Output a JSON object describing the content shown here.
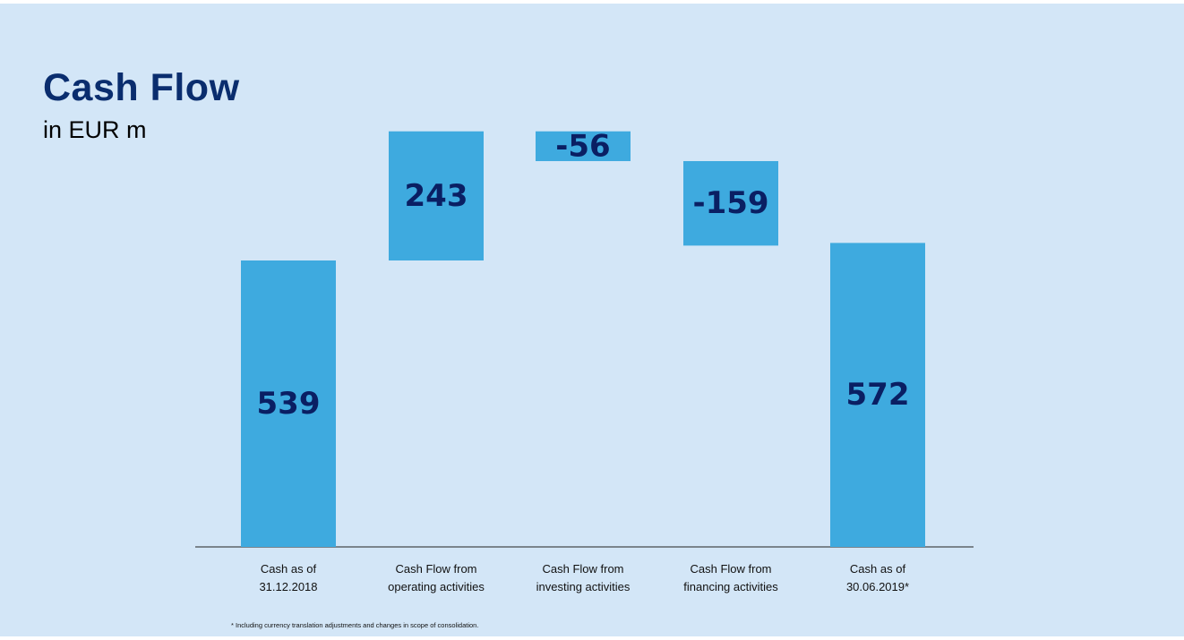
{
  "title": "Cash Flow",
  "subtitle": "in EUR m",
  "footnote": "* Including currency translation adjustments and changes in scope of consolidation.",
  "colors": {
    "background": "#d3e6f7",
    "bar": "#3eaadf",
    "title": "#0a2d6e",
    "value_label": "#0a1f63"
  },
  "chart_data": {
    "type": "waterfall",
    "categories": [
      [
        "Cash as of",
        "31.12.2018"
      ],
      [
        "Cash Flow from",
        "operating activities"
      ],
      [
        "Cash Flow from",
        "investing activities"
      ],
      [
        "Cash Flow from",
        "financing activities"
      ],
      [
        "Cash as of",
        "30.06.2019*"
      ]
    ],
    "values": [
      539,
      243,
      -56,
      -159,
      572
    ],
    "labels": [
      "539",
      "243",
      "-56",
      "-159",
      "572"
    ],
    "kinds": [
      "total",
      "delta",
      "delta",
      "delta",
      "total"
    ],
    "legend": "none",
    "grid": false
  }
}
